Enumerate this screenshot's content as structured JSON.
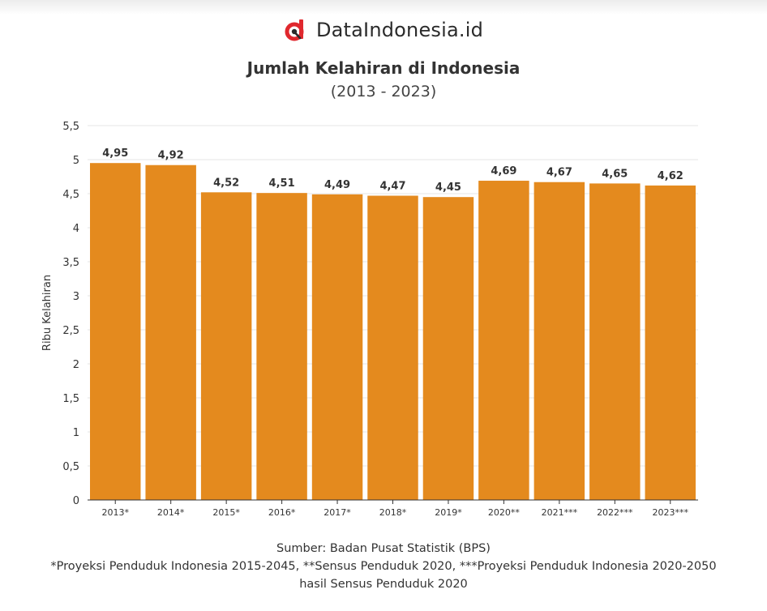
{
  "brand": {
    "name": "DataIndonesia.id",
    "logo_icon": "dataindonesia-d-logo-icon",
    "logo_color": "#e0282e"
  },
  "chart_data": {
    "type": "bar",
    "title": "Jumlah Kelahiran di Indonesia",
    "subtitle": "(2013 - 2023)",
    "categories": [
      "2013*",
      "2014*",
      "2015*",
      "2016*",
      "2017*",
      "2018*",
      "2019*",
      "2020**",
      "2021***",
      "2022***",
      "2023***"
    ],
    "values": [
      4.95,
      4.92,
      4.52,
      4.51,
      4.49,
      4.47,
      4.45,
      4.69,
      4.67,
      4.65,
      4.62
    ],
    "value_labels": [
      "4,95",
      "4,92",
      "4,52",
      "4,51",
      "4,49",
      "4,47",
      "4,45",
      "4,69",
      "4,67",
      "4,65",
      "4,62"
    ],
    "xlabel": "",
    "ylabel": "Ribu Kelahiran",
    "ylim": [
      0,
      5.5
    ],
    "y_ticks": [
      0,
      0.5,
      1,
      1.5,
      2,
      2.5,
      3,
      3.5,
      4,
      4.5,
      5,
      5.5
    ],
    "y_tick_labels": [
      "0",
      "0,5",
      "1",
      "1,5",
      "2",
      "2,5",
      "3",
      "3,5",
      "4",
      "4,5",
      "5",
      "5,5"
    ],
    "bar_color": "#e48a1e",
    "grid": true,
    "legend": "none"
  },
  "notes": {
    "source": "Sumber: Badan Pusat Statistik (BPS)",
    "footnote_line1": "*Proyeksi Penduduk Indonesia 2015-2045, **Sensus Penduduk 2020, ***Proyeksi Penduduk Indonesia 2020-2050",
    "footnote_line2": "hasil Sensus Penduduk 2020"
  }
}
